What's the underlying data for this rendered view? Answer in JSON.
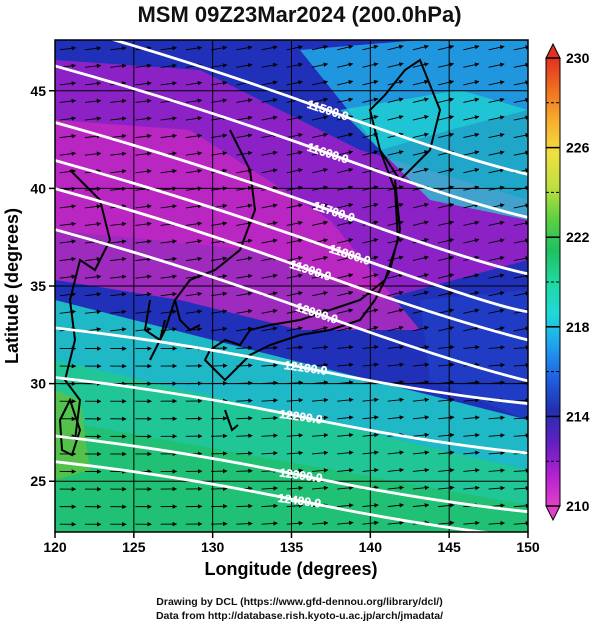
{
  "title": "MSM 09Z23Mar2024 (200.0hPa)",
  "chart_data": {
    "type": "heatmap",
    "title": "MSM 09Z23Mar2024 (200.0hPa)",
    "xlabel": "Longitude (degrees)",
    "ylabel": "Latitude  (degrees)",
    "xlim": [
      120,
      150
    ],
    "ylim": [
      22.4,
      47.6
    ],
    "x_ticks": [
      "120",
      "125",
      "130",
      "135",
      "140",
      "145",
      "150"
    ],
    "y_ticks": [
      "25",
      "30",
      "35",
      "40",
      "45"
    ],
    "x_tick_values": [
      120,
      125,
      130,
      135,
      140,
      145,
      150
    ],
    "y_tick_values": [
      25,
      30,
      35,
      40,
      45
    ],
    "colorbar": {
      "min": 210,
      "max": 230,
      "labels": [
        "210",
        "214",
        "218",
        "222",
        "226",
        "230"
      ],
      "label_values": [
        210,
        214,
        218,
        222,
        226,
        230
      ],
      "colors": [
        "#e040c8",
        "#b020d0",
        "#6020c0",
        "#2030b0",
        "#2060e0",
        "#20a0f0",
        "#20d8d8",
        "#20d8a0",
        "#20c060",
        "#60d040",
        "#c0e040",
        "#f0e040",
        "#f8b030",
        "#f07020",
        "#e03020"
      ]
    },
    "contours": [
      {
        "label": "11500.0",
        "lon": 137.3,
        "lat": 44.0
      },
      {
        "label": "11600.0",
        "lon": 137.3,
        "lat": 41.8
      },
      {
        "label": "11700.0",
        "lon": 137.7,
        "lat": 38.8
      },
      {
        "label": "11800.0",
        "lon": 138.7,
        "lat": 36.6
      },
      {
        "label": "11900.0",
        "lon": 136.2,
        "lat": 35.8
      },
      {
        "label": "12000.0",
        "lon": 136.6,
        "lat": 33.6
      },
      {
        "label": "12100.0",
        "lon": 135.9,
        "lat": 30.8
      },
      {
        "label": "12200.0",
        "lon": 135.6,
        "lat": 28.3
      },
      {
        "label": "12300.0",
        "lon": 135.6,
        "lat": 25.3
      },
      {
        "label": "12400.0",
        "lon": 135.5,
        "lat": 24.0
      }
    ]
  },
  "credits": {
    "line1": "Drawing by DCL (https://www.gfd-dennou.org/library/dcl/)",
    "line2": "Data from http://database.rish.kyoto-u.ac.jp/arch/jmadata/"
  }
}
